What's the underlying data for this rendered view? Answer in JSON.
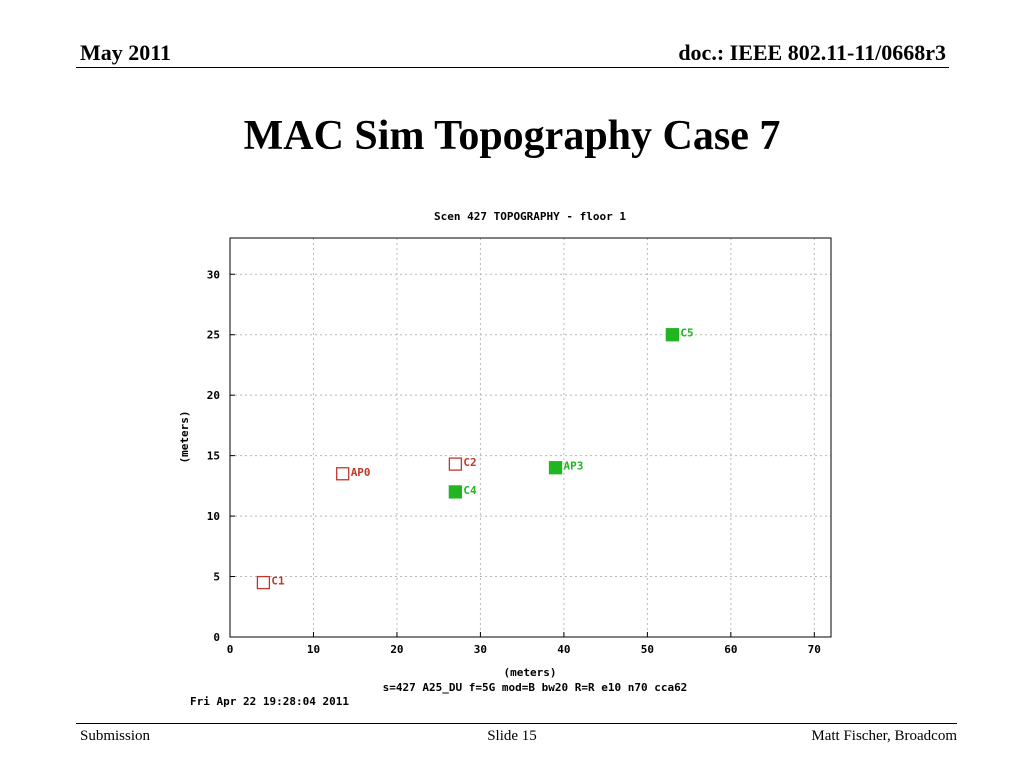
{
  "header": {
    "date": "May 2011",
    "doc_id": "doc.: IEEE 802.11-11/0668r3"
  },
  "slide_title": "MAC Sim Topography Case 7",
  "footer": {
    "left": "Submission",
    "center": "Slide 15",
    "right": "Matt Fischer, Broadcom"
  },
  "chart_data": {
    "type": "scatter",
    "title": "Scen 427 TOPOGRAPHY - floor 1",
    "xlabel": "(meters)",
    "ylabel": "(meters)",
    "xlim": [
      0,
      72
    ],
    "ylim": [
      0,
      33
    ],
    "xticks": [
      0,
      10,
      20,
      30,
      40,
      50,
      60,
      70
    ],
    "yticks": [
      0,
      5,
      10,
      15,
      20,
      25,
      30
    ],
    "grid": true,
    "points": [
      {
        "label": "AP0",
        "x": 13.5,
        "y": 13.5,
        "filled": false,
        "color": "#c0392b"
      },
      {
        "label": "C1",
        "x": 4,
        "y": 4.5,
        "filled": false,
        "color": "#c0392b"
      },
      {
        "label": "C2",
        "x": 27,
        "y": 14.3,
        "filled": false,
        "color": "#c0392b"
      },
      {
        "label": "AP3",
        "x": 39,
        "y": 14,
        "filled": true,
        "color": "#22b522"
      },
      {
        "label": "C4",
        "x": 27,
        "y": 12,
        "filled": true,
        "color": "#22b522"
      },
      {
        "label": "C5",
        "x": 53,
        "y": 25,
        "filled": true,
        "color": "#22b522"
      }
    ],
    "caption": "s=427 A25_DU f=5G mod=B bw20 R=R  e10 n70 cca62",
    "timestamp": "Fri Apr 22 19:28:04 2011"
  }
}
